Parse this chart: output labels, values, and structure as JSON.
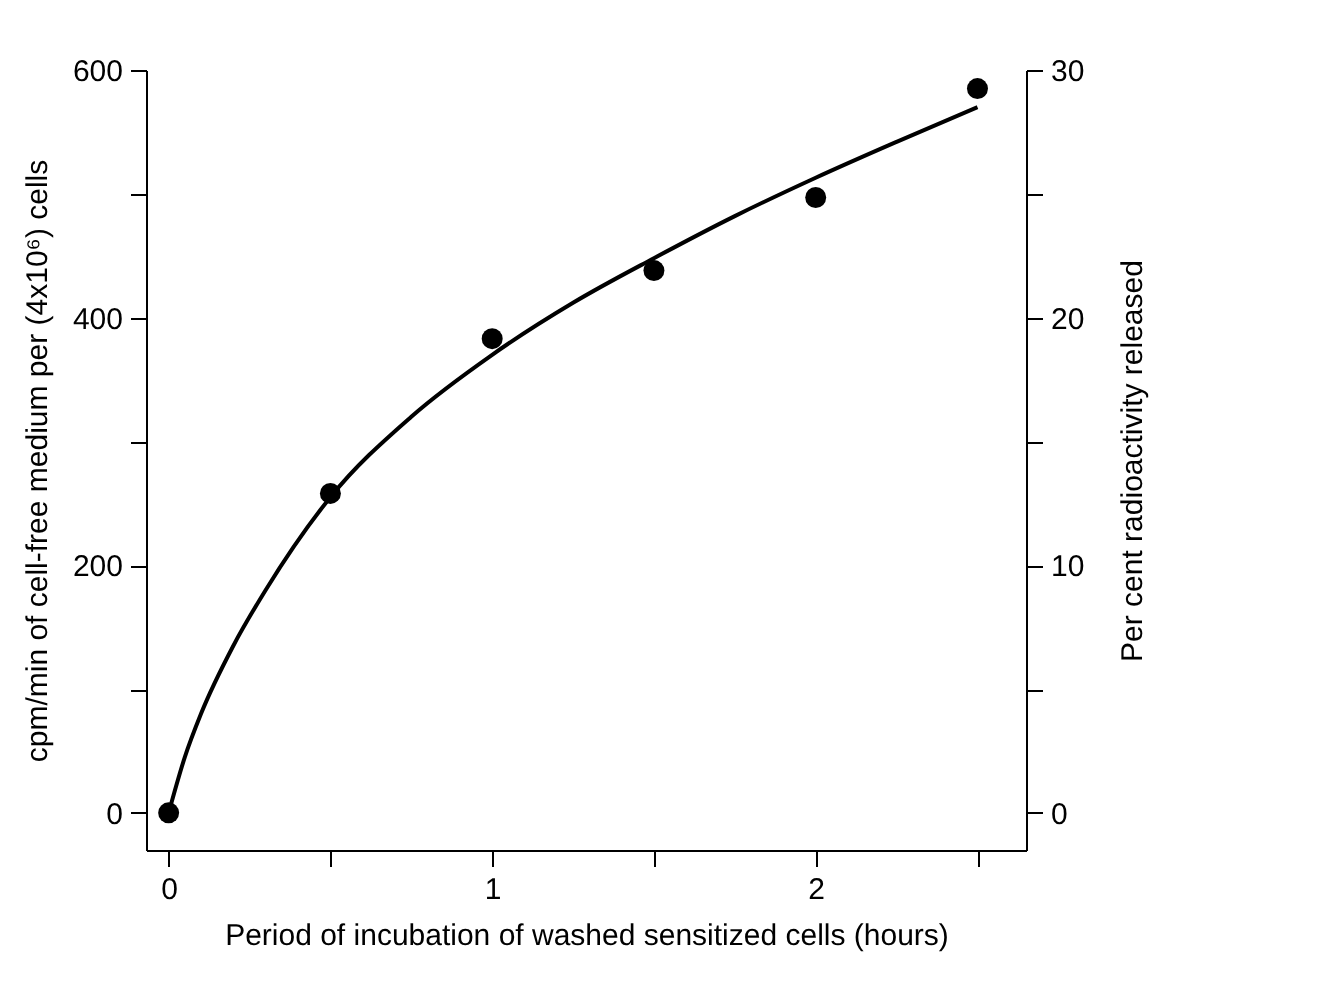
{
  "chart_data": {
    "type": "scatter",
    "xlabel": "Period of incubation of washed sensitized cells (hours)",
    "ylabel": "cpm/min of cell-free medium per (4x10⁶) cells",
    "y2label": "Per cent radioactivity released",
    "xlim": [
      -0.07,
      2.65
    ],
    "xticks": [
      0,
      {
        "value": 0.5,
        "label": null
      },
      1,
      {
        "value": 1.5,
        "label": null
      },
      2,
      {
        "value": 2.5,
        "label": null
      }
    ],
    "ylim": [
      -30,
      600
    ],
    "yticks": [
      0,
      {
        "value": 100,
        "label": null
      },
      200,
      {
        "value": 300,
        "label": null
      },
      400,
      {
        "value": 500,
        "label": null
      },
      600
    ],
    "y2lim": [
      -1.5,
      30
    ],
    "y2ticks": [
      0,
      {
        "value": 5,
        "label": null
      },
      10,
      {
        "value": 15,
        "label": null
      },
      20,
      {
        "value": 25,
        "label": null
      },
      30
    ],
    "grid": false,
    "series": [
      {
        "marker": "circle",
        "color": "#000000",
        "x": [
          0,
          0.5,
          1,
          1.5,
          2,
          2.5
        ],
        "values": [
          0,
          258,
          383,
          438,
          497,
          585
        ]
      },
      {
        "type": "line",
        "marker": "none",
        "color": "#000000",
        "x": [
          0,
          0.05,
          0.1,
          0.2,
          0.3,
          0.5,
          0.75,
          1,
          1.25,
          1.5,
          1.75,
          2,
          2.25,
          2.5
        ],
        "values": [
          0,
          45,
          80,
          135,
          180,
          255,
          320,
          370,
          412,
          448,
          482,
          513,
          542,
          570
        ]
      }
    ]
  }
}
